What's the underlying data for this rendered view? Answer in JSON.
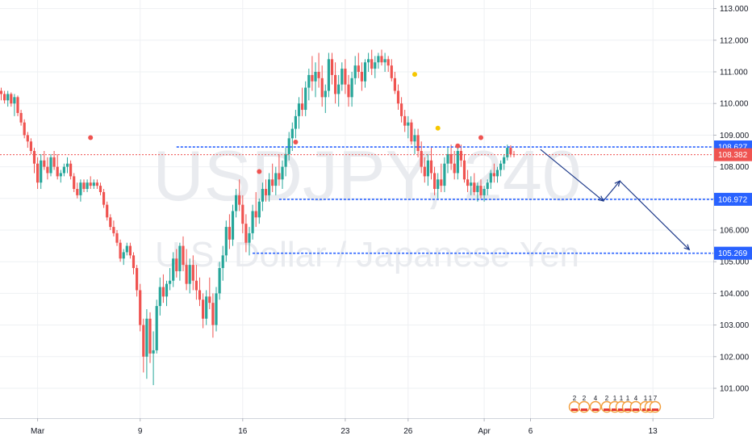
{
  "watermark": {
    "symbol": "USDJPY, 240",
    "description": "U.S. Dollar / Japanese Yen"
  },
  "colors": {
    "up": "#26a69a",
    "down": "#ef5350",
    "level_line": "#2962ff",
    "arrow": "#1e3a8a",
    "current_line": "#ef5350",
    "grid": "#eef0f3",
    "dot_red": "#ef5350",
    "dot_yellow": "#f6c700"
  },
  "event_icons": {
    "labels": [
      "2",
      "2",
      "4",
      "2",
      "1",
      "1",
      "1",
      "4",
      "1",
      "1",
      "7"
    ]
  },
  "chart_data": {
    "type": "candlestick",
    "title": "",
    "ylim": [
      100.25,
      113.0
    ],
    "y_ticks": [
      "101.000",
      "102.000",
      "103.000",
      "104.000",
      "105.000",
      "106.000",
      "107.000",
      "108.000",
      "109.000",
      "110.000",
      "111.000",
      "112.000",
      "113.000"
    ],
    "x_ticks": [
      {
        "label": "Mar",
        "bar": 11
      },
      {
        "label": "9",
        "bar": 42
      },
      {
        "label": "16",
        "bar": 73
      },
      {
        "label": "23",
        "bar": 104
      },
      {
        "label": "26",
        "bar": 123
      },
      {
        "label": "Apr",
        "bar": 146
      },
      {
        "label": "6",
        "bar": 160
      },
      {
        "label": "13",
        "bar": 197
      }
    ],
    "total_bars": 212,
    "price_levels": [
      {
        "value": 108.627,
        "label": "108.627",
        "style": "dotted",
        "from_bar": 53
      },
      {
        "value": 106.972,
        "label": "106.972",
        "style": "dotted",
        "from_bar": 84
      },
      {
        "value": 105.269,
        "label": "105.269",
        "style": "dotted",
        "from_bar": 76
      }
    ],
    "current_price": {
      "value": 108.382,
      "label": "108.382"
    },
    "projection_path": [
      {
        "bar": 163,
        "price": 108.55
      },
      {
        "bar": 182,
        "price": 106.92
      },
      {
        "bar": 187,
        "price": 107.55
      },
      {
        "bar": 208,
        "price": 105.38
      }
    ],
    "event_dots": [
      {
        "bar": 27,
        "price": 108.92,
        "color": "red"
      },
      {
        "bar": 78,
        "price": 107.85,
        "color": "red"
      },
      {
        "bar": 89,
        "price": 108.78,
        "color": "red"
      },
      {
        "bar": 125,
        "price": 110.92,
        "color": "yellow"
      },
      {
        "bar": 132,
        "price": 109.22,
        "color": "yellow"
      },
      {
        "bar": 138,
        "price": 108.66,
        "color": "red"
      },
      {
        "bar": 145,
        "price": 108.92,
        "color": "red"
      }
    ],
    "candles": [
      [
        110.4,
        110.5,
        110.1,
        110.3
      ],
      [
        110.3,
        110.4,
        110.0,
        110.1
      ],
      [
        110.1,
        110.4,
        109.9,
        110.3
      ],
      [
        110.3,
        110.35,
        109.9,
        110.0
      ],
      [
        110.0,
        110.3,
        109.6,
        110.2
      ],
      [
        110.2,
        110.25,
        109.6,
        109.7
      ],
      [
        109.7,
        109.8,
        109.3,
        109.4
      ],
      [
        109.4,
        109.5,
        108.9,
        109.0
      ],
      [
        109.0,
        109.1,
        108.6,
        108.8
      ],
      [
        108.8,
        108.9,
        108.4,
        108.5
      ],
      [
        108.5,
        108.6,
        107.8,
        108.1
      ],
      [
        108.1,
        108.3,
        107.3,
        107.5
      ],
      [
        107.5,
        108.4,
        107.3,
        108.2
      ],
      [
        108.2,
        108.5,
        107.9,
        108.0
      ],
      [
        108.0,
        108.3,
        107.6,
        107.8
      ],
      [
        107.8,
        108.4,
        107.7,
        108.3
      ],
      [
        108.3,
        108.5,
        107.9,
        108.0
      ],
      [
        108.0,
        108.4,
        107.6,
        107.7
      ],
      [
        107.7,
        107.9,
        107.5,
        107.8
      ],
      [
        107.8,
        108.1,
        107.7,
        108.0
      ],
      [
        108.0,
        108.3,
        107.8,
        108.1
      ],
      [
        108.1,
        108.2,
        107.6,
        107.7
      ],
      [
        107.7,
        107.8,
        107.2,
        107.3
      ],
      [
        107.3,
        107.5,
        107.0,
        107.1
      ],
      [
        107.1,
        107.6,
        106.9,
        107.5
      ],
      [
        107.5,
        107.6,
        107.2,
        107.3
      ],
      [
        107.3,
        107.6,
        107.2,
        107.5
      ],
      [
        107.5,
        107.7,
        107.3,
        107.4
      ],
      [
        107.4,
        107.6,
        107.3,
        107.5
      ],
      [
        107.5,
        107.6,
        107.3,
        107.4
      ],
      [
        107.4,
        107.5,
        107.1,
        107.2
      ],
      [
        107.2,
        107.3,
        106.7,
        106.8
      ],
      [
        106.8,
        106.9,
        106.3,
        106.4
      ],
      [
        106.4,
        106.5,
        106.0,
        106.1
      ],
      [
        106.1,
        106.3,
        105.8,
        105.9
      ],
      [
        105.9,
        106.0,
        105.5,
        105.6
      ],
      [
        105.6,
        105.7,
        105.0,
        105.1
      ],
      [
        105.1,
        105.4,
        104.9,
        105.3
      ],
      [
        105.3,
        105.6,
        105.2,
        105.5
      ],
      [
        105.5,
        105.6,
        105.1,
        105.2
      ],
      [
        105.2,
        105.3,
        104.6,
        104.8
      ],
      [
        104.8,
        104.9,
        103.9,
        104.1
      ],
      [
        104.1,
        104.3,
        102.8,
        103.0
      ],
      [
        103.0,
        103.2,
        101.5,
        102.0
      ],
      [
        102.0,
        103.5,
        101.3,
        103.2
      ],
      [
        103.2,
        103.4,
        101.8,
        102.1
      ],
      [
        102.1,
        102.8,
        101.1,
        102.2
      ],
      [
        102.2,
        103.8,
        102.1,
        103.6
      ],
      [
        103.6,
        104.5,
        103.3,
        104.2
      ],
      [
        104.2,
        104.6,
        103.7,
        103.9
      ],
      [
        103.9,
        104.4,
        103.6,
        104.3
      ],
      [
        104.3,
        104.8,
        104.1,
        104.4
      ],
      [
        104.4,
        105.3,
        104.2,
        105.1
      ],
      [
        105.1,
        105.4,
        104.5,
        104.7
      ],
      [
        104.7,
        105.6,
        104.4,
        105.5
      ],
      [
        105.5,
        105.8,
        104.7,
        104.9
      ],
      [
        104.9,
        105.4,
        104.1,
        104.3
      ],
      [
        104.3,
        105.1,
        104.0,
        104.9
      ],
      [
        104.9,
        105.2,
        104.1,
        104.4
      ],
      [
        104.4,
        104.9,
        103.8,
        104.1
      ],
      [
        104.1,
        104.5,
        103.6,
        103.8
      ],
      [
        103.8,
        104.0,
        102.9,
        103.2
      ],
      [
        103.2,
        104.1,
        103.0,
        103.9
      ],
      [
        103.9,
        104.5,
        103.5,
        103.7
      ],
      [
        103.7,
        104.0,
        102.6,
        103.0
      ],
      [
        103.0,
        104.2,
        102.8,
        104.0
      ],
      [
        104.0,
        105.0,
        103.8,
        104.8
      ],
      [
        104.8,
        105.5,
        104.4,
        105.2
      ],
      [
        105.2,
        106.3,
        105.0,
        106.1
      ],
      [
        106.1,
        106.5,
        105.4,
        105.7
      ],
      [
        105.7,
        106.8,
        105.5,
        106.6
      ],
      [
        106.6,
        107.3,
        106.4,
        107.1
      ],
      [
        107.1,
        107.6,
        106.6,
        106.8
      ],
      [
        106.8,
        107.1,
        105.9,
        106.2
      ],
      [
        106.2,
        106.5,
        105.3,
        105.6
      ],
      [
        105.6,
        106.1,
        105.2,
        105.9
      ],
      [
        105.9,
        106.8,
        105.7,
        106.6
      ],
      [
        106.6,
        107.2,
        106.1,
        106.4
      ],
      [
        106.4,
        107.0,
        106.2,
        106.9
      ],
      [
        106.9,
        107.5,
        106.6,
        107.3
      ],
      [
        107.3,
        107.6,
        106.9,
        107.1
      ],
      [
        107.1,
        107.8,
        106.9,
        107.6
      ],
      [
        107.6,
        108.1,
        107.2,
        107.4
      ],
      [
        107.4,
        108.0,
        107.1,
        107.8
      ],
      [
        107.8,
        108.4,
        107.4,
        107.6
      ],
      [
        107.6,
        108.2,
        107.3,
        108.0
      ],
      [
        108.0,
        108.6,
        107.7,
        108.4
      ],
      [
        108.4,
        109.1,
        108.2,
        108.9
      ],
      [
        108.9,
        109.4,
        108.5,
        109.2
      ],
      [
        109.2,
        109.8,
        108.9,
        109.6
      ],
      [
        109.6,
        110.2,
        109.2,
        110.0
      ],
      [
        110.0,
        110.5,
        109.6,
        109.8
      ],
      [
        109.8,
        110.7,
        109.6,
        110.5
      ],
      [
        110.5,
        111.1,
        110.1,
        110.9
      ],
      [
        110.9,
        111.5,
        110.4,
        110.7
      ],
      [
        110.7,
        111.3,
        110.2,
        111.0
      ],
      [
        111.0,
        111.6,
        110.5,
        110.8
      ],
      [
        110.8,
        111.2,
        109.9,
        110.2
      ],
      [
        110.2,
        110.6,
        109.7,
        110.4
      ],
      [
        110.4,
        111.6,
        110.2,
        111.4
      ],
      [
        111.4,
        111.6,
        110.6,
        110.9
      ],
      [
        110.9,
        111.3,
        110.0,
        110.3
      ],
      [
        110.3,
        110.9,
        109.9,
        110.6
      ],
      [
        110.6,
        111.3,
        110.4,
        111.1
      ],
      [
        111.1,
        111.4,
        110.3,
        110.6
      ],
      [
        110.6,
        110.9,
        109.9,
        110.2
      ],
      [
        110.2,
        111.0,
        109.9,
        110.8
      ],
      [
        110.8,
        111.5,
        110.6,
        111.2
      ],
      [
        111.2,
        111.6,
        110.8,
        111.0
      ],
      [
        111.0,
        111.3,
        110.4,
        110.7
      ],
      [
        110.7,
        111.4,
        110.5,
        111.3
      ],
      [
        111.3,
        111.6,
        111.0,
        111.4
      ],
      [
        111.4,
        111.7,
        110.9,
        111.1
      ],
      [
        111.1,
        111.5,
        110.8,
        111.3
      ],
      [
        111.3,
        111.6,
        111.1,
        111.5
      ],
      [
        111.5,
        111.7,
        111.2,
        111.3
      ],
      [
        111.3,
        111.6,
        111.0,
        111.4
      ],
      [
        111.4,
        111.5,
        111.0,
        111.2
      ],
      [
        111.2,
        111.4,
        110.7,
        110.8
      ],
      [
        110.8,
        111.0,
        110.3,
        110.4
      ],
      [
        110.4,
        110.6,
        109.8,
        110.0
      ],
      [
        110.0,
        110.2,
        109.4,
        109.6
      ],
      [
        109.6,
        109.8,
        109.1,
        109.3
      ],
      [
        109.3,
        109.6,
        108.9,
        109.4
      ],
      [
        109.4,
        109.5,
        108.7,
        108.8
      ],
      [
        108.8,
        109.2,
        108.4,
        109.0
      ],
      [
        109.0,
        109.2,
        108.3,
        108.5
      ],
      [
        108.5,
        108.8,
        107.8,
        108.0
      ],
      [
        108.0,
        108.3,
        107.5,
        107.7
      ],
      [
        107.7,
        108.4,
        107.4,
        108.2
      ],
      [
        108.2,
        108.6,
        107.6,
        107.8
      ],
      [
        107.8,
        108.0,
        107.1,
        107.3
      ],
      [
        107.3,
        107.8,
        107.0,
        107.6
      ],
      [
        107.6,
        108.1,
        107.2,
        107.4
      ],
      [
        107.4,
        108.3,
        107.2,
        108.1
      ],
      [
        108.1,
        108.6,
        107.8,
        108.4
      ],
      [
        108.4,
        108.7,
        107.9,
        108.1
      ],
      [
        108.1,
        108.5,
        107.6,
        107.8
      ],
      [
        107.8,
        108.6,
        107.6,
        108.5
      ],
      [
        108.5,
        108.7,
        108.0,
        108.2
      ],
      [
        108.2,
        108.4,
        107.5,
        107.6
      ],
      [
        107.6,
        107.9,
        107.2,
        107.4
      ],
      [
        107.4,
        107.7,
        107.1,
        107.5
      ],
      [
        107.5,
        107.8,
        107.1,
        107.2
      ],
      [
        107.2,
        107.5,
        106.9,
        107.4
      ],
      [
        107.4,
        107.6,
        107.0,
        107.1
      ],
      [
        107.1,
        107.4,
        106.9,
        107.3
      ],
      [
        107.3,
        107.6,
        107.1,
        107.5
      ],
      [
        107.5,
        107.9,
        107.3,
        107.8
      ],
      [
        107.8,
        108.1,
        107.5,
        107.7
      ],
      [
        107.7,
        108.0,
        107.5,
        107.9
      ],
      [
        107.9,
        108.2,
        107.7,
        108.1
      ],
      [
        108.1,
        108.4,
        107.9,
        108.3
      ],
      [
        108.3,
        108.7,
        108.2,
        108.6
      ],
      [
        108.6,
        108.68,
        108.3,
        108.4
      ],
      [
        108.4,
        108.5,
        108.3,
        108.38
      ]
    ]
  }
}
